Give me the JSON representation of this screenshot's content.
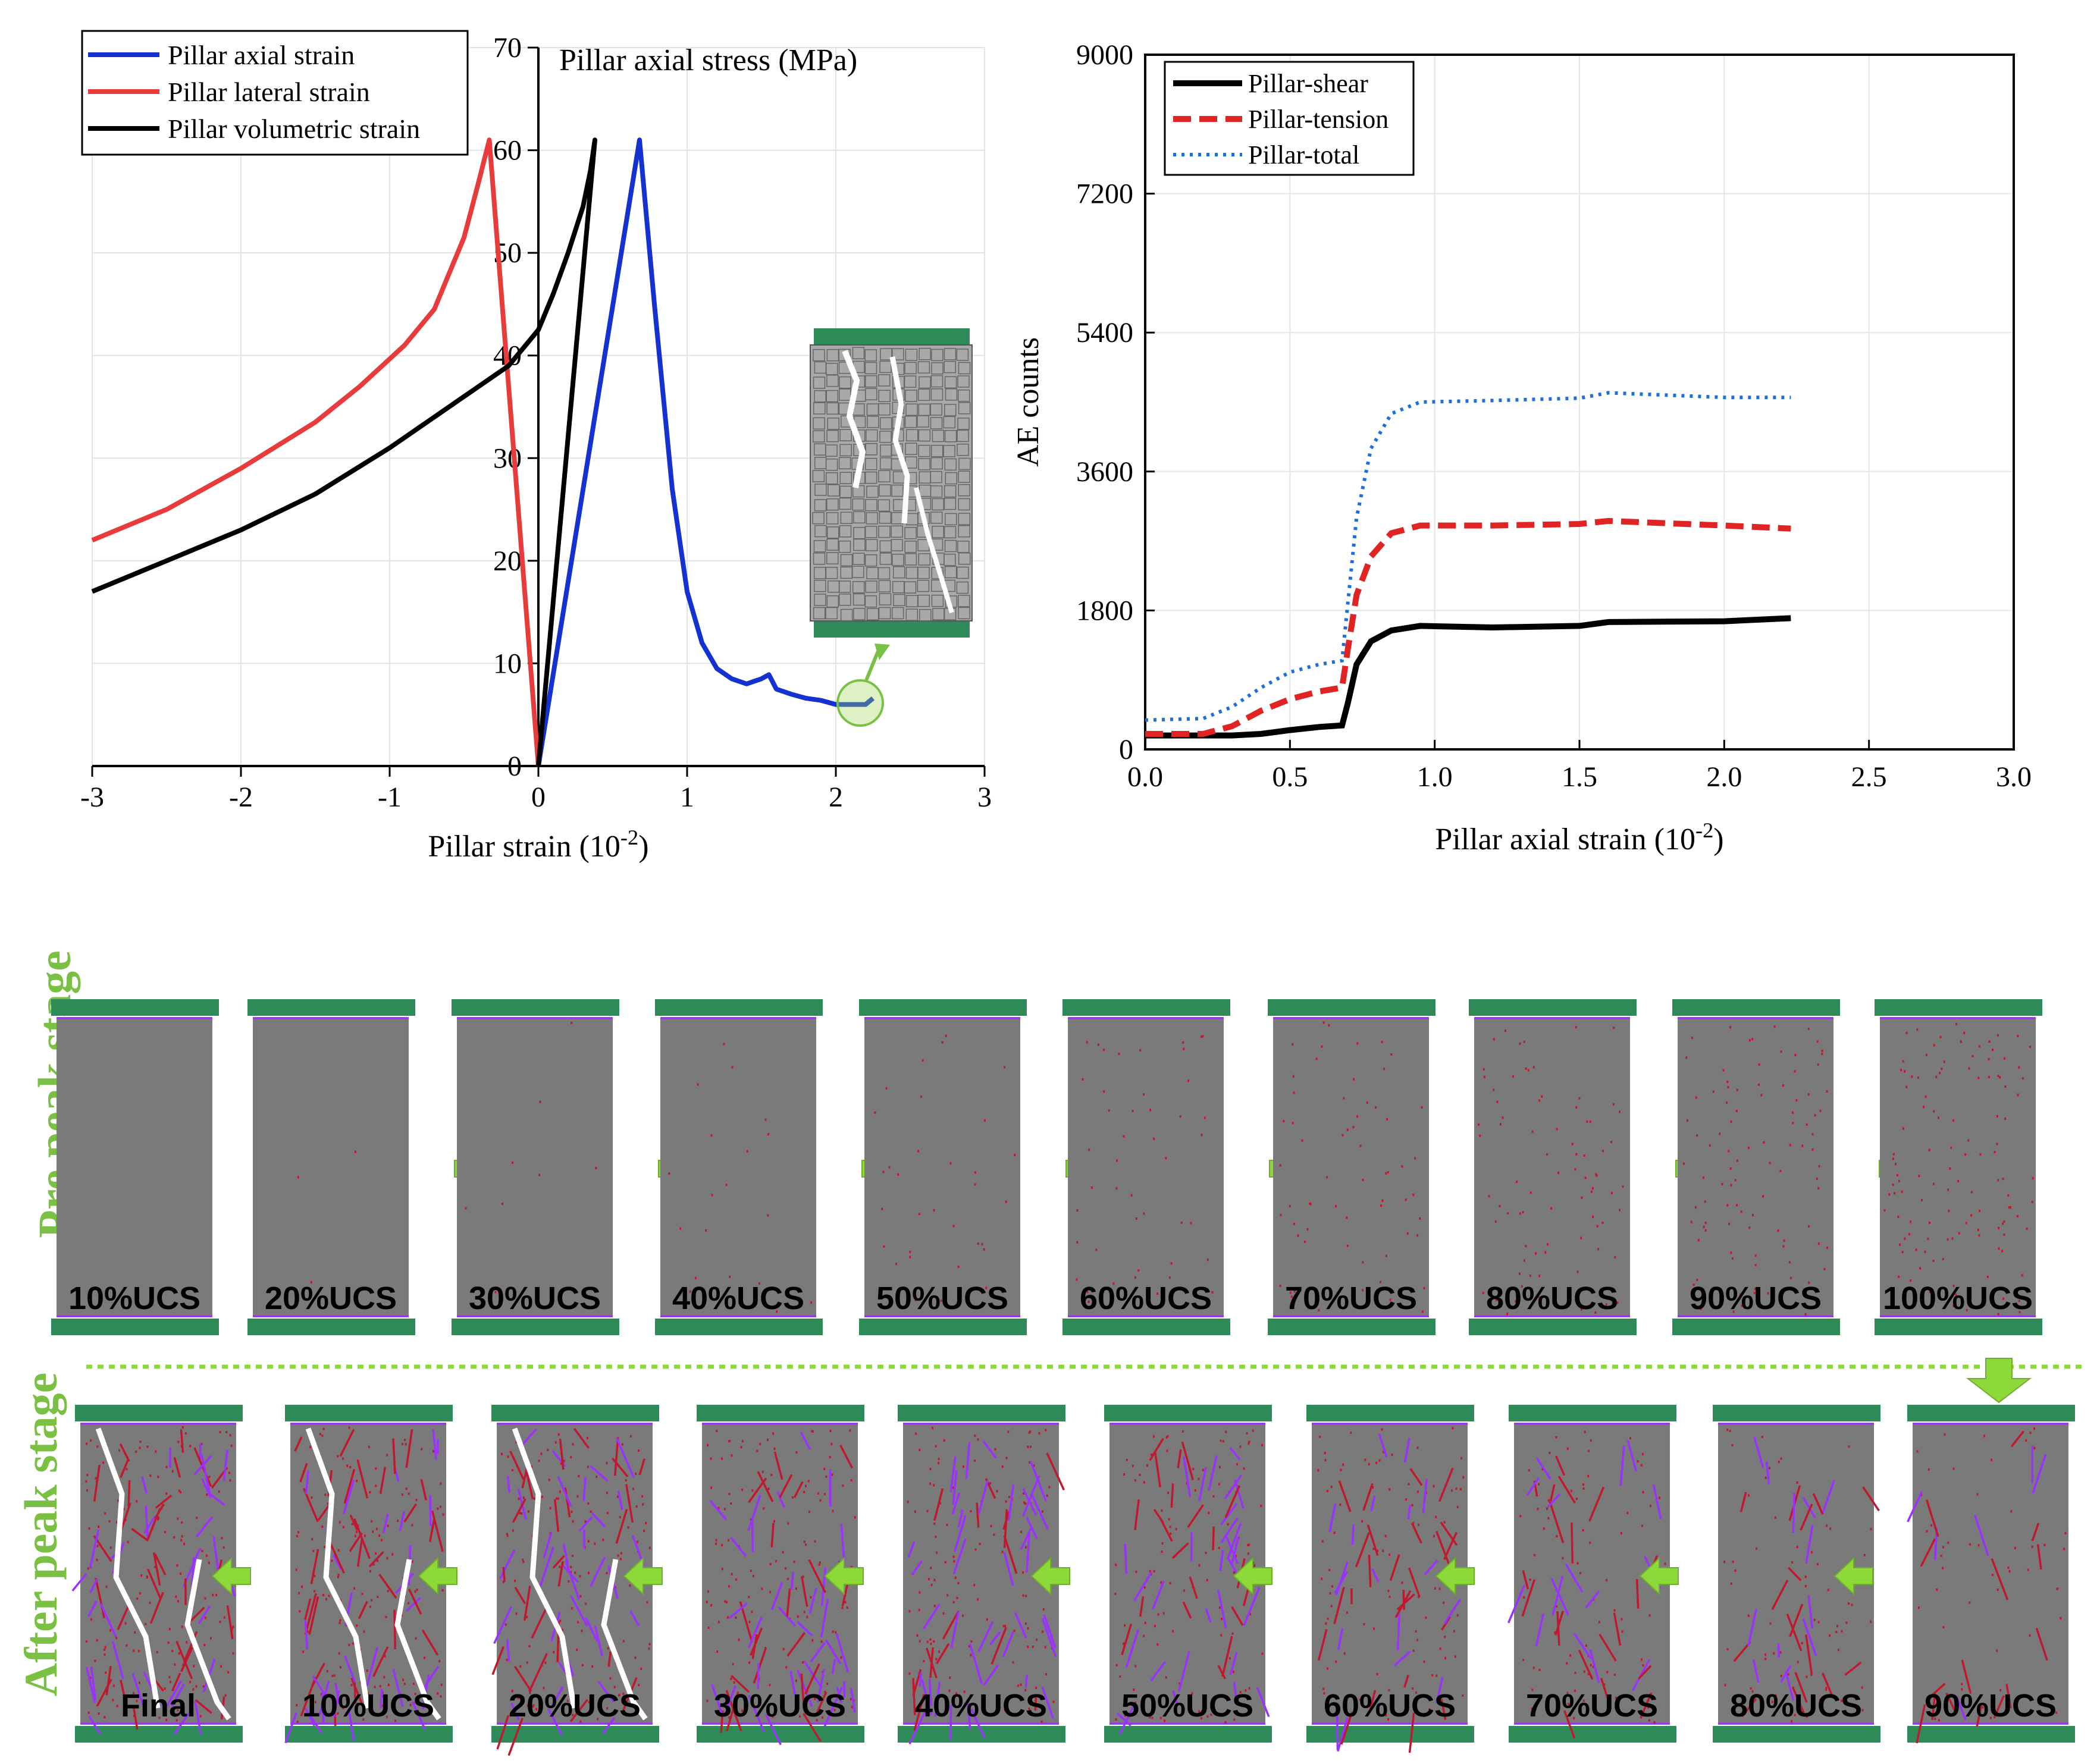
{
  "colors": {
    "axial": "#1432d2",
    "lateral": "#e83c3c",
    "volumetric": "#000000",
    "shear": "#000000",
    "tension": "#e02424",
    "total": "#1e6fdc",
    "platen": "#2e8b57",
    "specimen": "#7a7a7a",
    "stage_label": "#7ac143",
    "arrow": "#8ed93a",
    "crack_tension": "#c0182e",
    "crack_shear": "#9b30ff",
    "fracture": "#ffffff"
  },
  "chart_data": [
    {
      "type": "line",
      "title": "Pillar axial stress (MPa)",
      "xlabel": "Pillar strain (10",
      "xlabel_sup": "-2",
      "xlabel_end": ")",
      "ylabel": "Pillar axial stress (MPa)",
      "xlim": [
        -3,
        3
      ],
      "ylim": [
        0,
        70
      ],
      "xticks": [
        "-3",
        "-2",
        "-1",
        "0",
        "1",
        "2",
        "3"
      ],
      "yticks": [
        "0",
        "10",
        "20",
        "30",
        "40",
        "50",
        "60",
        "70"
      ],
      "grid": true,
      "legend_position": "top-left",
      "series": [
        {
          "name": "Pillar axial strain",
          "color_key": "axial",
          "x": [
            0,
            0.68,
            0.78,
            0.9,
            1.0,
            1.1,
            1.2,
            1.3,
            1.4,
            1.5,
            1.55,
            1.6,
            1.7,
            1.8,
            1.9,
            2.0,
            2.1,
            2.2,
            2.25
          ],
          "y": [
            0,
            61,
            45,
            27,
            17,
            12,
            9.5,
            8.5,
            8.0,
            8.5,
            8.9,
            7.5,
            7.0,
            6.6,
            6.4,
            6.0,
            6.0,
            6.0,
            6.6
          ]
        },
        {
          "name": "Pillar lateral strain",
          "color_key": "lateral",
          "x": [
            0,
            -0.33,
            -0.4,
            -0.5,
            -0.7,
            -0.9,
            -1.2,
            -1.5,
            -2.0,
            -2.5,
            -3.0
          ],
          "y": [
            0,
            61,
            57,
            51.5,
            44.5,
            41,
            37,
            33.5,
            29,
            25,
            22
          ]
        },
        {
          "name": "Pillar volumetric strain",
          "color_key": "volumetric",
          "x": [
            0,
            0.38,
            0.35,
            0.3,
            0.2,
            0.1,
            0.0,
            -0.2,
            -0.4,
            -0.6,
            -1.0,
            -1.5,
            -2.0,
            -2.5,
            -3.0
          ],
          "y": [
            0,
            61,
            58,
            54.5,
            50,
            46,
            42.5,
            39,
            37,
            35,
            31,
            26.5,
            23,
            20,
            17
          ]
        }
      ]
    },
    {
      "type": "line",
      "xlabel": "Pillar axial strain (10",
      "xlabel_sup": "-2",
      "xlabel_end": ")",
      "ylabel": "AE counts",
      "xlim": [
        0,
        3.0
      ],
      "ylim": [
        0,
        9000
      ],
      "xticks": [
        "0.0",
        "0.5",
        "1.0",
        "1.5",
        "2.0",
        "2.5",
        "3.0"
      ],
      "yticks": [
        "0",
        "1800",
        "3600",
        "5400",
        "7200",
        "9000"
      ],
      "grid": true,
      "legend_position": "top-left",
      "series": [
        {
          "name": "Pillar-shear",
          "color_key": "shear",
          "x": [
            0,
            0.3,
            0.4,
            0.5,
            0.6,
            0.68,
            0.7,
            0.73,
            0.78,
            0.85,
            0.95,
            1.2,
            1.5,
            1.6,
            2.0,
            2.23
          ],
          "y": [
            180,
            180,
            200,
            250,
            290,
            310,
            600,
            1100,
            1400,
            1540,
            1600,
            1580,
            1600,
            1650,
            1660,
            1700
          ]
        },
        {
          "name": "Pillar-tension",
          "color_key": "tension",
          "x": [
            0,
            0.2,
            0.3,
            0.4,
            0.5,
            0.6,
            0.68,
            0.7,
            0.73,
            0.78,
            0.85,
            0.95,
            1.2,
            1.5,
            1.6,
            2.0,
            2.23
          ],
          "y": [
            200,
            200,
            300,
            500,
            650,
            750,
            800,
            1300,
            2000,
            2500,
            2800,
            2900,
            2900,
            2920,
            2960,
            2900,
            2860
          ]
        },
        {
          "name": "Pillar-total",
          "color_key": "total",
          "x": [
            0,
            0.2,
            0.3,
            0.4,
            0.5,
            0.6,
            0.68,
            0.7,
            0.73,
            0.78,
            0.85,
            0.95,
            1.2,
            1.5,
            1.6,
            2.0,
            2.23
          ],
          "y": [
            380,
            400,
            550,
            800,
            1000,
            1100,
            1150,
            1900,
            3000,
            3900,
            4350,
            4500,
            4520,
            4550,
            4620,
            4560,
            4560
          ]
        }
      ]
    }
  ],
  "stages": {
    "pre_label": "Pre peak stage",
    "after_label": "After peak stage",
    "pre": [
      {
        "label": "10%UCS",
        "density": 0
      },
      {
        "label": "20%UCS",
        "density": 0.02
      },
      {
        "label": "30%UCS",
        "density": 0.05
      },
      {
        "label": "40%UCS",
        "density": 0.12
      },
      {
        "label": "50%UCS",
        "density": 0.2
      },
      {
        "label": "60%UCS",
        "density": 0.3
      },
      {
        "label": "70%UCS",
        "density": 0.4
      },
      {
        "label": "80%UCS",
        "density": 0.5
      },
      {
        "label": "90%UCS",
        "density": 0.6
      },
      {
        "label": "100%UCS",
        "density": 0.75
      }
    ],
    "after": [
      {
        "label": "Final",
        "density": 1.0
      },
      {
        "label": "10%UCS",
        "density": 0.95
      },
      {
        "label": "20%UCS",
        "density": 0.9
      },
      {
        "label": "30%UCS",
        "density": 0.85
      },
      {
        "label": "40%UCS",
        "density": 0.8
      },
      {
        "label": "50%UCS",
        "density": 0.72
      },
      {
        "label": "60%UCS",
        "density": 0.62
      },
      {
        "label": "70%UCS",
        "density": 0.52
      },
      {
        "label": "80%UCS",
        "density": 0.42
      },
      {
        "label": "90%UCS",
        "density": 0.3
      }
    ]
  }
}
